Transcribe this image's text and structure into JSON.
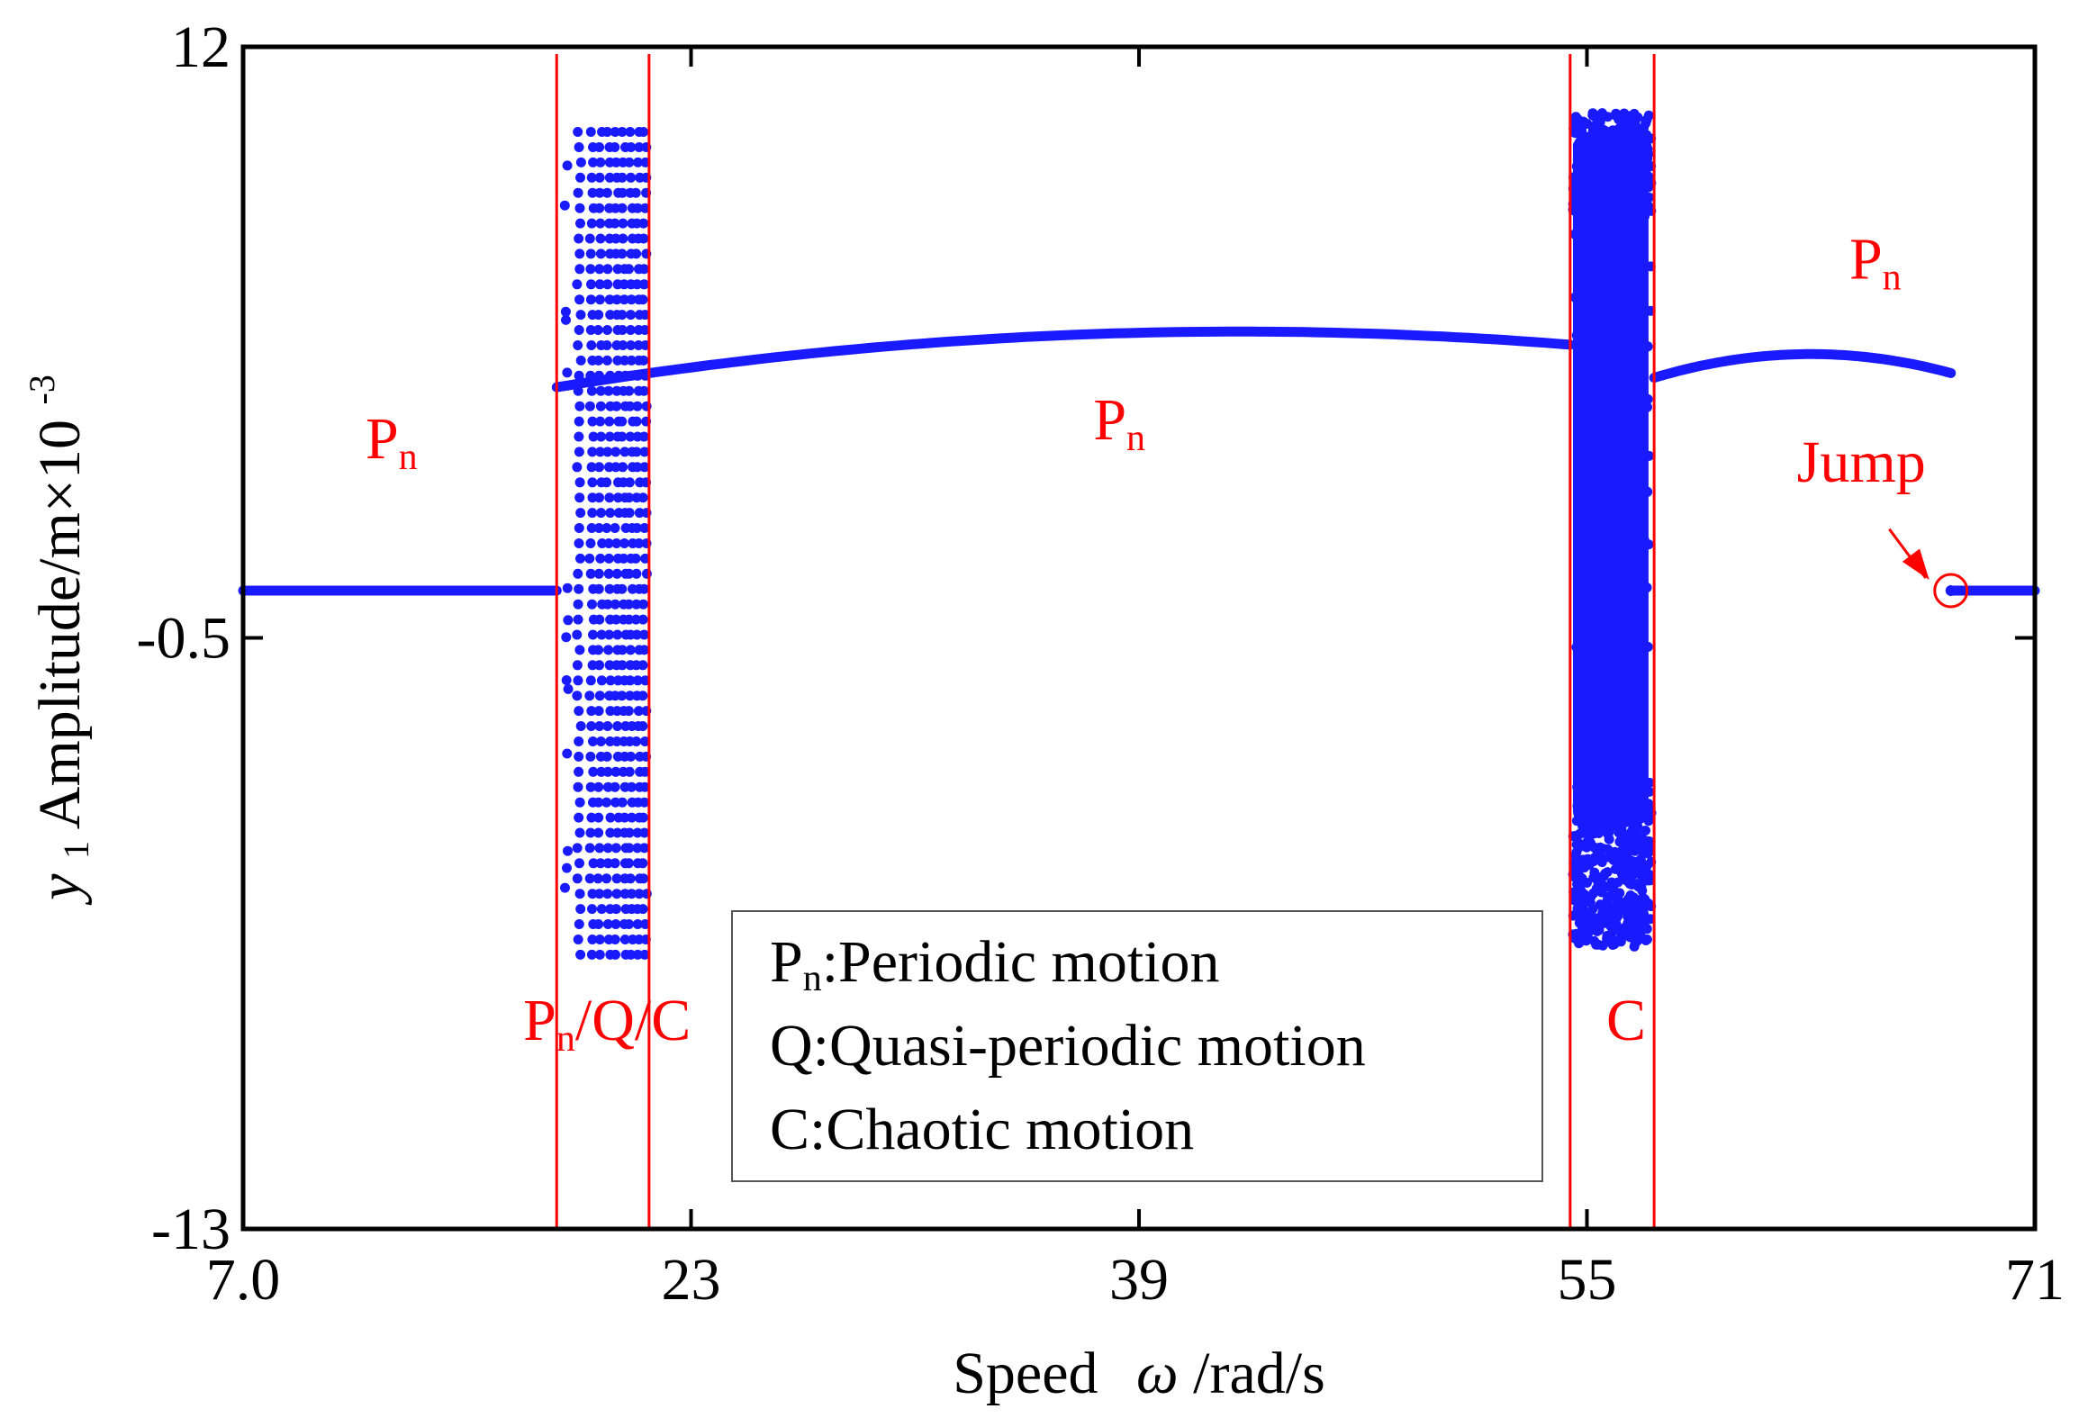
{
  "chart_data": {
    "type": "scatter",
    "title": "",
    "xlabel_main": "Speed",
    "xlabel_symbol": "ω",
    "xlabel_unit": "/rad/s",
    "ylabel_var": "y",
    "ylabel_sub": "1",
    "ylabel_rest": " Amplitude/m×10",
    "ylabel_exp": "-3",
    "xlim": [
      7.0,
      71
    ],
    "ylim": [
      -13,
      12
    ],
    "xticks": [
      7.0,
      23,
      39,
      55,
      71
    ],
    "xtick_labels": [
      "7.0",
      "23",
      "39",
      "55",
      "71"
    ],
    "yticks": [
      12,
      -0.5,
      -13
    ],
    "ytick_labels": [
      "12",
      "-0.5",
      "-13"
    ],
    "series_color": "#1a1aff",
    "annotation_color": "#ff0000",
    "boundaries": [
      18.2,
      21.5,
      54.4,
      57.4
    ],
    "regions": [
      {
        "name": "periodic-1",
        "x_start": 7.0,
        "x_end": 18.2,
        "y": 0.5
      },
      {
        "name": "scatter-pqc",
        "x_start": 18.6,
        "x_end": 21.5,
        "y_min": -7.2,
        "y_max": 10.2
      },
      {
        "name": "periodic-2",
        "x_start": 18.2,
        "x_end": 54.4,
        "y_start": 4.8,
        "y_peak": 5.9,
        "y_end": 5.7
      },
      {
        "name": "scatter-chaos",
        "x_start": 54.4,
        "x_end": 57.4,
        "y_min": -7.1,
        "y_max": 10.6
      },
      {
        "name": "periodic-3",
        "x_start": 57.4,
        "x_end": 68.0,
        "y_start": 5.0,
        "y_peak": 5.5,
        "y_end": 5.1
      },
      {
        "name": "periodic-4",
        "x_start": 68.0,
        "x_end": 71,
        "y": 0.5
      }
    ],
    "annotations": [
      {
        "id": "pn-left",
        "text": "P",
        "sub": "n",
        "x": 12.3,
        "y": 3.3
      },
      {
        "id": "pn-middle",
        "text": "P",
        "sub": "n",
        "x": 38.3,
        "y": 3.7
      },
      {
        "id": "pn-right",
        "text": "P",
        "sub": "n",
        "x": 65.3,
        "y": 7.1
      },
      {
        "id": "pqc",
        "text": "P",
        "sub": "n",
        "rest": "/Q/C",
        "x": 20.0,
        "y": -9.0
      },
      {
        "id": "chaos",
        "text": "C",
        "x": 56.4,
        "y": -9.0
      },
      {
        "id": "jump",
        "text": "Jump",
        "x": 64.8,
        "y": 2.8
      }
    ],
    "jump_point": {
      "x": 68.0,
      "y": 0.5
    },
    "legend": {
      "placement": "bottom-center",
      "entries": [
        {
          "key": "P",
          "sub": "n",
          "desc": ":Periodic motion"
        },
        {
          "key": "Q",
          "sub": "",
          "desc": ":Quasi-periodic motion"
        },
        {
          "key": "C",
          "sub": "",
          "desc": ":Chaotic motion"
        }
      ]
    }
  }
}
